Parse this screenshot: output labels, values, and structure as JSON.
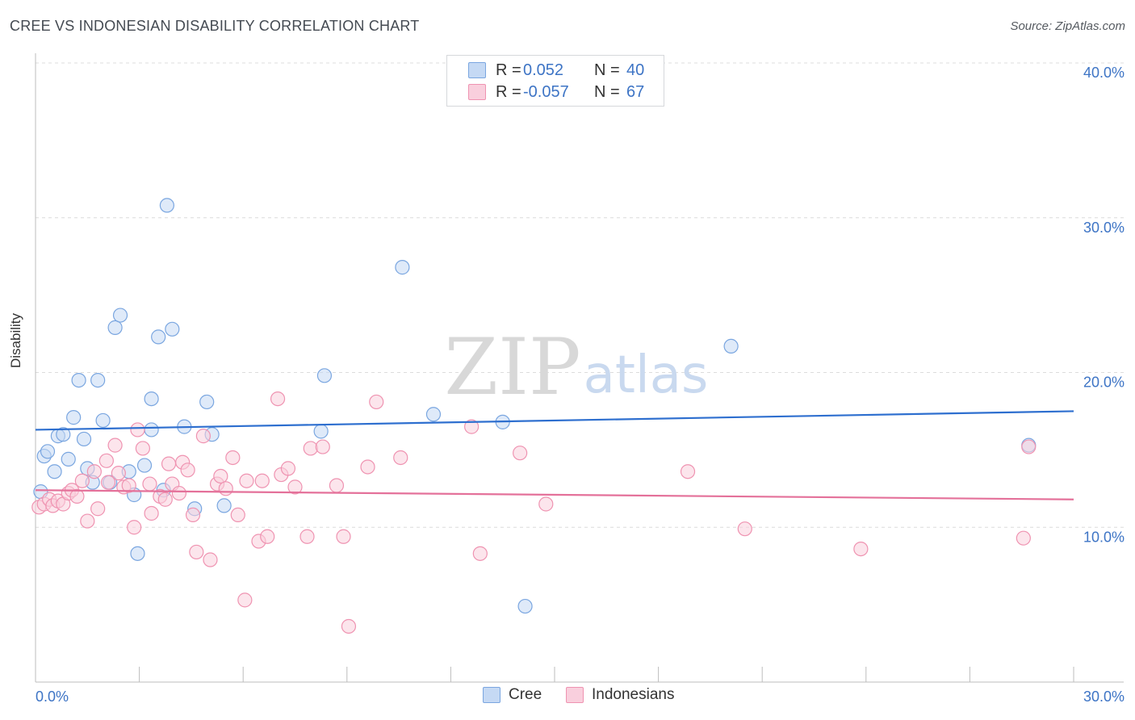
{
  "header": {
    "title": "CREE VS INDONESIAN DISABILITY CORRELATION CHART",
    "source": "Source: ZipAtlas.com"
  },
  "watermark": {
    "zip": "ZIP",
    "atlas": "atlas"
  },
  "legend_top": {
    "rows": [
      {
        "series": "Cree",
        "r_label": "R =",
        "r_value": "0.052",
        "n_label": "N =",
        "n_value": "40"
      },
      {
        "series": "Indonesians",
        "r_label": "R =",
        "r_value": "-0.057",
        "n_label": "N =",
        "n_value": "67"
      }
    ]
  },
  "legend_bottom": {
    "cree": "Cree",
    "indonesians": "Indonesians"
  },
  "colors": {
    "cree_fill": "#c5d9f4",
    "cree_stroke": "#7aa6e0",
    "cree_line": "#2e6fcf",
    "indo_fill": "#f9cfdd",
    "indo_stroke": "#ef93b1",
    "indo_line": "#e4719a",
    "tick_label": "#3d74c5",
    "grid": "#dcdcdc"
  },
  "chart_data": {
    "type": "scatter",
    "title": "CREE VS INDONESIAN DISABILITY CORRELATION CHART",
    "xlabel": "",
    "ylabel": "Disability",
    "xlim": [
      0,
      30
    ],
    "ylim": [
      0,
      40
    ],
    "x_tick_labels": [
      "0.0%",
      "30.0%"
    ],
    "y_tick_labels": [
      "10.0%",
      "20.0%",
      "30.0%",
      "40.0%"
    ],
    "y_ticks": [
      10,
      20,
      30,
      40
    ],
    "grid": true,
    "series": [
      {
        "name": "Cree",
        "r": 0.052,
        "n": 40,
        "trend": [
          [
            0,
            16.3
          ],
          [
            30,
            17.5
          ]
        ],
        "points": [
          [
            0.15,
            12.3
          ],
          [
            0.25,
            14.6
          ],
          [
            0.35,
            14.9
          ],
          [
            0.55,
            13.6
          ],
          [
            0.65,
            15.9
          ],
          [
            0.8,
            16.0
          ],
          [
            0.95,
            14.4
          ],
          [
            1.1,
            17.1
          ],
          [
            1.25,
            19.5
          ],
          [
            1.4,
            15.7
          ],
          [
            1.5,
            13.8
          ],
          [
            1.65,
            12.9
          ],
          [
            1.8,
            19.5
          ],
          [
            1.95,
            16.9
          ],
          [
            2.15,
            12.9
          ],
          [
            2.3,
            22.9
          ],
          [
            2.45,
            23.7
          ],
          [
            2.7,
            13.6
          ],
          [
            2.85,
            12.1
          ],
          [
            2.95,
            8.3
          ],
          [
            3.15,
            14.0
          ],
          [
            3.35,
            16.3
          ],
          [
            3.35,
            18.3
          ],
          [
            3.55,
            22.3
          ],
          [
            3.7,
            12.4
          ],
          [
            3.8,
            30.8
          ],
          [
            3.95,
            22.8
          ],
          [
            4.3,
            16.5
          ],
          [
            4.6,
            11.2
          ],
          [
            4.95,
            18.1
          ],
          [
            5.1,
            16.0
          ],
          [
            5.45,
            11.4
          ],
          [
            8.25,
            16.2
          ],
          [
            8.35,
            19.8
          ],
          [
            10.6,
            26.8
          ],
          [
            11.5,
            17.3
          ],
          [
            13.5,
            16.8
          ],
          [
            14.15,
            4.9
          ],
          [
            20.1,
            21.7
          ],
          [
            28.7,
            15.3
          ]
        ]
      },
      {
        "name": "Indonesians",
        "r": -0.057,
        "n": 67,
        "trend": [
          [
            0,
            12.4
          ],
          [
            30,
            11.8
          ]
        ],
        "points": [
          [
            0.1,
            11.3
          ],
          [
            0.25,
            11.5
          ],
          [
            0.4,
            11.8
          ],
          [
            0.5,
            11.4
          ],
          [
            0.65,
            11.7
          ],
          [
            0.8,
            11.5
          ],
          [
            0.95,
            12.2
          ],
          [
            1.05,
            12.4
          ],
          [
            1.2,
            12.0
          ],
          [
            1.35,
            13.0
          ],
          [
            1.5,
            10.4
          ],
          [
            1.7,
            13.6
          ],
          [
            1.8,
            11.2
          ],
          [
            2.05,
            14.3
          ],
          [
            2.1,
            12.9
          ],
          [
            2.3,
            15.3
          ],
          [
            2.4,
            13.5
          ],
          [
            2.55,
            12.6
          ],
          [
            2.7,
            12.7
          ],
          [
            2.85,
            10.0
          ],
          [
            2.95,
            16.3
          ],
          [
            3.1,
            15.1
          ],
          [
            3.3,
            12.8
          ],
          [
            3.35,
            10.9
          ],
          [
            3.6,
            12.0
          ],
          [
            3.75,
            11.8
          ],
          [
            3.85,
            14.1
          ],
          [
            3.95,
            12.8
          ],
          [
            4.15,
            12.2
          ],
          [
            4.25,
            14.2
          ],
          [
            4.4,
            13.7
          ],
          [
            4.55,
            10.8
          ],
          [
            4.65,
            8.4
          ],
          [
            4.85,
            15.9
          ],
          [
            5.05,
            7.9
          ],
          [
            5.25,
            12.8
          ],
          [
            5.35,
            13.3
          ],
          [
            5.5,
            12.5
          ],
          [
            5.7,
            14.5
          ],
          [
            5.85,
            10.8
          ],
          [
            6.05,
            5.3
          ],
          [
            6.1,
            13.0
          ],
          [
            6.45,
            9.1
          ],
          [
            6.55,
            13.0
          ],
          [
            6.7,
            9.4
          ],
          [
            7.0,
            18.3
          ],
          [
            7.1,
            13.4
          ],
          [
            7.3,
            13.8
          ],
          [
            7.5,
            12.6
          ],
          [
            7.85,
            9.4
          ],
          [
            7.95,
            15.1
          ],
          [
            8.3,
            15.2
          ],
          [
            8.7,
            12.7
          ],
          [
            8.9,
            9.4
          ],
          [
            9.05,
            3.6
          ],
          [
            9.6,
            13.9
          ],
          [
            9.85,
            18.1
          ],
          [
            10.55,
            14.5
          ],
          [
            12.6,
            16.5
          ],
          [
            12.85,
            8.3
          ],
          [
            14.0,
            14.8
          ],
          [
            14.75,
            11.5
          ],
          [
            18.85,
            13.6
          ],
          [
            20.5,
            9.9
          ],
          [
            23.85,
            8.6
          ],
          [
            28.55,
            9.3
          ],
          [
            28.7,
            15.2
          ]
        ]
      }
    ]
  }
}
